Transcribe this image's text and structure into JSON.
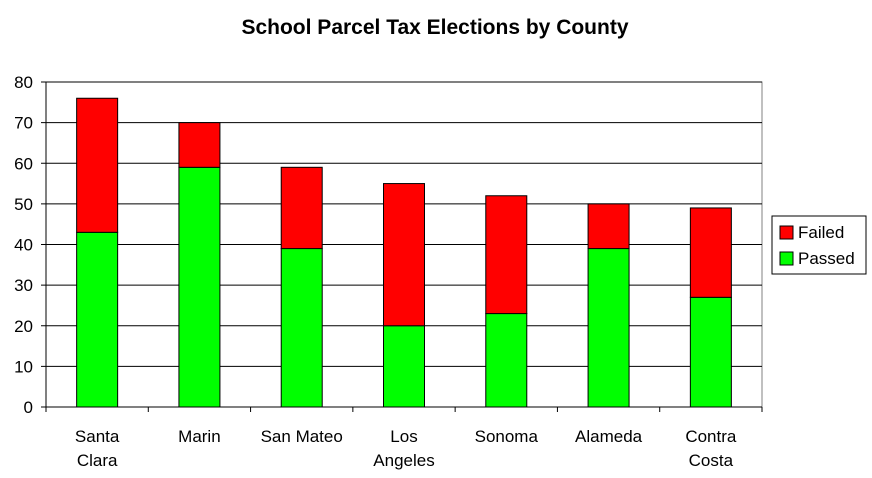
{
  "chart_data": {
    "type": "bar",
    "stacked": true,
    "title": "School Parcel Tax Elections by County",
    "categories": [
      [
        "Santa",
        "Clara"
      ],
      [
        "Marin"
      ],
      [
        "San Mateo"
      ],
      [
        "Los",
        "Angeles"
      ],
      [
        "Sonoma"
      ],
      [
        "Alameda"
      ],
      [
        "Contra",
        "Costa"
      ]
    ],
    "series": [
      {
        "name": "Passed",
        "color": "#00ff00",
        "values": [
          43,
          59,
          39,
          20,
          23,
          39,
          27
        ]
      },
      {
        "name": "Failed",
        "color": "#ff0000",
        "values": [
          33,
          11,
          20,
          35,
          29,
          11,
          22
        ]
      }
    ],
    "ylim": [
      0,
      80
    ],
    "yticks": [
      0,
      10,
      20,
      30,
      40,
      50,
      60,
      70,
      80
    ],
    "grid": true,
    "legend": "right"
  }
}
